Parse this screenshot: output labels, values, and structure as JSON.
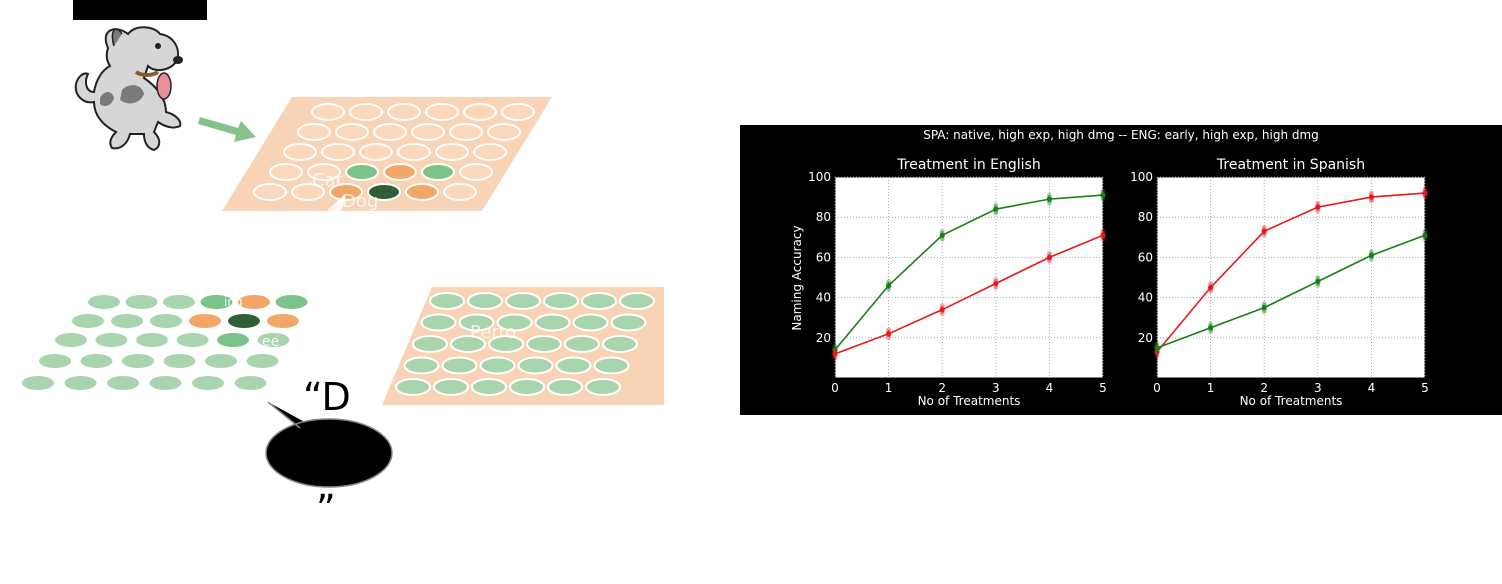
{
  "diagram": {
    "labels": {
      "cat": "Cat",
      "dog": "Dog",
      "perro": "Perro",
      "ing_small": "ing",
      "ee_small": "ee",
      "speech_open": "“D",
      "speech_close": "”"
    },
    "colors": {
      "semantic_layer": "#f8d3b5",
      "semantic_circle_idle": "#fbd7bb",
      "active_orange": "#f2a766",
      "active_green": "#7cc38a",
      "dark_green": "#2f5f37",
      "phon_circle": "#a8d5ae",
      "arrow": "#86c28c"
    },
    "icons": [
      "dog-cartoon-icon",
      "arrow-right-icon",
      "speech-bubble-icon"
    ]
  },
  "chart": {
    "suptitle": "SPA:  native, high exp, high dmg -- ENG: early, high exp, high dmg",
    "ylabel": "Naming Accuracy",
    "colors": {
      "red": "#e8191c",
      "green": "#178017"
    }
  },
  "chart_data": [
    {
      "type": "line",
      "title": "Treatment in English",
      "xlabel": "No of Treatments",
      "ylabel": "Naming Accuracy",
      "x": [
        0,
        1,
        2,
        3,
        4,
        5
      ],
      "xlim": [
        0,
        5
      ],
      "ylim": [
        0,
        100
      ],
      "yticks": [
        20,
        40,
        60,
        80,
        100
      ],
      "grid": true,
      "series": [
        {
          "color": "green",
          "values": [
            14,
            46,
            71,
            84,
            89,
            91
          ]
        },
        {
          "color": "red",
          "values": [
            12,
            22,
            34,
            47,
            60,
            71
          ]
        }
      ]
    },
    {
      "type": "line",
      "title": "Treatment in Spanish",
      "xlabel": "No of Treatments",
      "x": [
        0,
        1,
        2,
        3,
        4,
        5
      ],
      "xlim": [
        0,
        5
      ],
      "ylim": [
        0,
        100
      ],
      "yticks": [
        20,
        40,
        60,
        80,
        100
      ],
      "grid": true,
      "series": [
        {
          "color": "red",
          "values": [
            13,
            45,
            73,
            85,
            90,
            92
          ]
        },
        {
          "color": "green",
          "values": [
            15,
            25,
            35,
            48,
            61,
            71
          ]
        }
      ]
    }
  ]
}
